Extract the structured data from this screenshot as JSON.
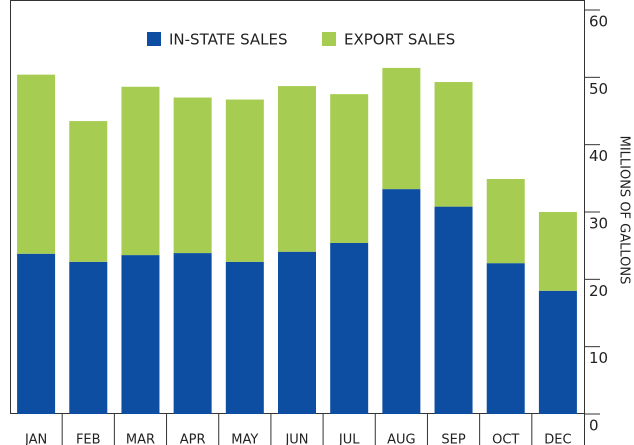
{
  "chart_data": {
    "type": "stacked_bar",
    "categories": [
      "JAN",
      "FEB",
      "MAR",
      "APR",
      "MAY",
      "JUN",
      "JUL",
      "AUG",
      "SEP",
      "OCT",
      "DEC"
    ],
    "series": [
      {
        "name": "IN-STATE SALES",
        "color": "#0d4ea3",
        "values": [
          23.8,
          22.6,
          23.6,
          23.9,
          22.6,
          24.1,
          25.4,
          33.4,
          30.8,
          22.4,
          18.3
        ]
      },
      {
        "name": "EXPORT SALES",
        "color": "#a6cc52",
        "values": [
          26.6,
          20.9,
          25.0,
          23.1,
          24.1,
          24.6,
          22.1,
          18.0,
          18.5,
          12.5,
          11.7
        ]
      }
    ],
    "y_label": "MILLIONS OF GALLONS",
    "ylim": [
      0,
      60
    ],
    "yticks": [
      0,
      10,
      20,
      30,
      40,
      50,
      60
    ]
  }
}
